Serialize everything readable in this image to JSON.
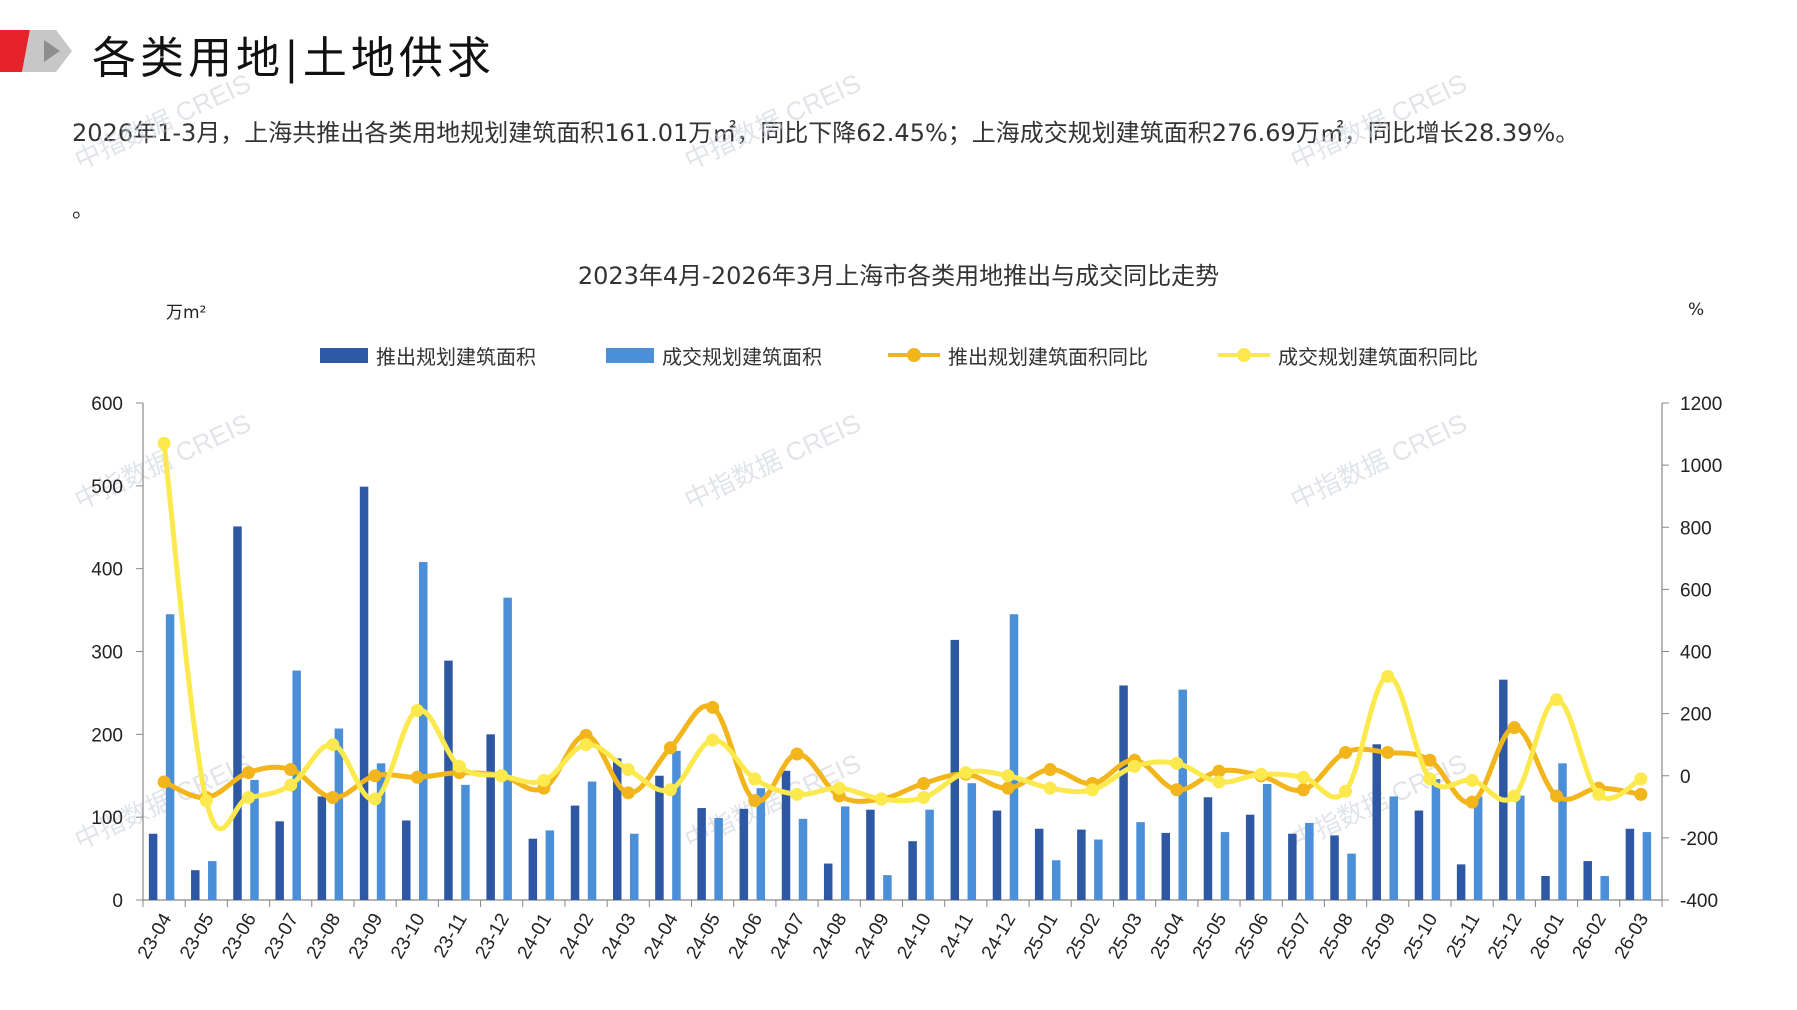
{
  "header": {
    "title": "各类用地|土地供求"
  },
  "summary": {
    "text": "2026年1-3月，上海共推出各类用地规划建筑面积161.01万㎡，同比下降62.45%；上海成交规划建筑面积276.69万㎡，同比增长28.39%。",
    "tail": "。"
  },
  "watermark": "中指数据 CREIS",
  "colors": {
    "supply_bar": "#2f58a4",
    "deal_bar": "#4a8fd8",
    "supply_line": "#f2b51b",
    "deal_line": "#fbe94d",
    "axis": "#888888"
  },
  "chart_data": {
    "type": "bar+line",
    "title": "2023年4月-2026年3月上海市各类用地推出与成交同比走势",
    "y_left_label": "万m²",
    "y_right_label": "%",
    "y_left_lim": [
      0,
      600
    ],
    "y_left_ticks": [
      "0",
      "100",
      "200",
      "300",
      "400",
      "500",
      "600"
    ],
    "y_right_lim": [
      -400,
      1200
    ],
    "y_right_ticks": [
      "-400",
      "-200",
      "0",
      "200",
      "400",
      "600",
      "800",
      "1000",
      "1200"
    ],
    "legend_position": "top",
    "grid": false,
    "categories": [
      "23-04",
      "23-05",
      "23-06",
      "23-07",
      "23-08",
      "23-09",
      "23-10",
      "23-11",
      "23-12",
      "24-01",
      "24-02",
      "24-03",
      "24-04",
      "24-05",
      "24-06",
      "24-07",
      "24-08",
      "24-09",
      "24-10",
      "24-11",
      "24-12",
      "25-01",
      "25-02",
      "25-03",
      "25-04",
      "25-05",
      "25-06",
      "25-07",
      "25-08",
      "25-09",
      "25-10",
      "25-11",
      "25-12",
      "26-01",
      "26-02",
      "26-03"
    ],
    "series": [
      {
        "name": "推出规划建筑面积",
        "type": "bar",
        "axis": "left",
        "values": [
          80,
          36,
          451,
          95,
          125,
          499,
          96,
          289,
          200,
          74,
          114,
          171,
          150,
          111,
          110,
          156,
          44,
          109,
          71,
          314,
          108,
          86,
          85,
          259,
          81,
          124,
          103,
          80,
          78,
          188,
          108,
          43,
          266,
          29,
          47,
          86
        ]
      },
      {
        "name": "成交规划建筑面积",
        "type": "bar",
        "axis": "left",
        "values": [
          345,
          47,
          145,
          277,
          207,
          165,
          408,
          139,
          365,
          84,
          143,
          80,
          180,
          99,
          135,
          98,
          113,
          30,
          109,
          141,
          345,
          48,
          73,
          94,
          254,
          82,
          140,
          93,
          56,
          125,
          146,
          125,
          126,
          165,
          29,
          82
        ]
      },
      {
        "name": "推出规划建筑面积同比",
        "type": "line",
        "axis": "right",
        "values": [
          -20,
          -70,
          10,
          20,
          -70,
          0,
          -5,
          10,
          0,
          -40,
          130,
          -55,
          90,
          220,
          -80,
          70,
          -65,
          -75,
          -25,
          5,
          -40,
          20,
          -25,
          50,
          -45,
          15,
          0,
          -45,
          75,
          75,
          50,
          -85,
          155,
          -65,
          -40,
          -60
        ]
      },
      {
        "name": "成交规划建筑面积同比",
        "type": "line",
        "axis": "right",
        "values": [
          1070,
          -80,
          -70,
          -30,
          100,
          -75,
          210,
          30,
          0,
          -15,
          100,
          20,
          -45,
          115,
          -10,
          -60,
          -40,
          -75,
          -70,
          10,
          0,
          -40,
          -45,
          30,
          40,
          -20,
          5,
          -5,
          -50,
          320,
          -10,
          -15,
          -65,
          245,
          -60,
          -10
        ]
      }
    ]
  }
}
